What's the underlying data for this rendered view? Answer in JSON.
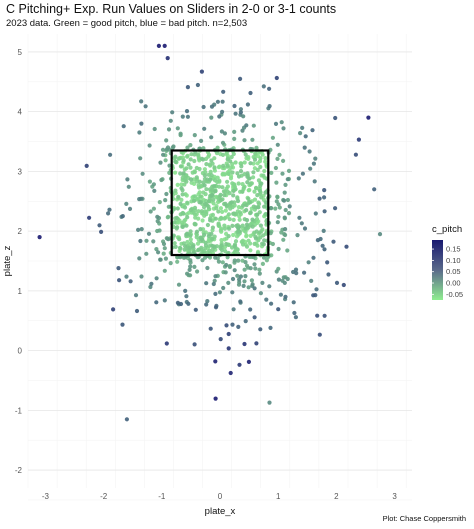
{
  "chart_data": {
    "type": "scatter",
    "title": "C Pitching+ Exp. Run Values on Sliders in 2-0 or 3-1 counts",
    "subtitle": "2023 data. Green = good pitch, blue = bad pitch. n=2,503",
    "caption": "Plot: Chase Coppersmith",
    "xlabel": "plate_x",
    "ylabel": "plate_z",
    "xlim": [
      -3.3,
      3.3
    ],
    "ylim": [
      -2.3,
      5.3
    ],
    "x_ticks": [
      -3,
      -2,
      -1,
      0,
      1,
      2,
      3
    ],
    "y_ticks": [
      -2,
      -1,
      0,
      1,
      2,
      3,
      4,
      5
    ],
    "grid": true,
    "strike_zone": {
      "x_min": -0.83,
      "x_max": 0.83,
      "z_min": 1.6,
      "z_max": 3.35
    },
    "color_scale": {
      "name": "c_pitch",
      "low": -0.075,
      "high": 0.19,
      "low_color": "#90EE90",
      "high_color": "#191970",
      "ticks": [
        0.15,
        0.1,
        0.05,
        0.0,
        -0.05
      ],
      "legend_position": "right"
    },
    "n_points": 2503,
    "seed": 20231
  }
}
